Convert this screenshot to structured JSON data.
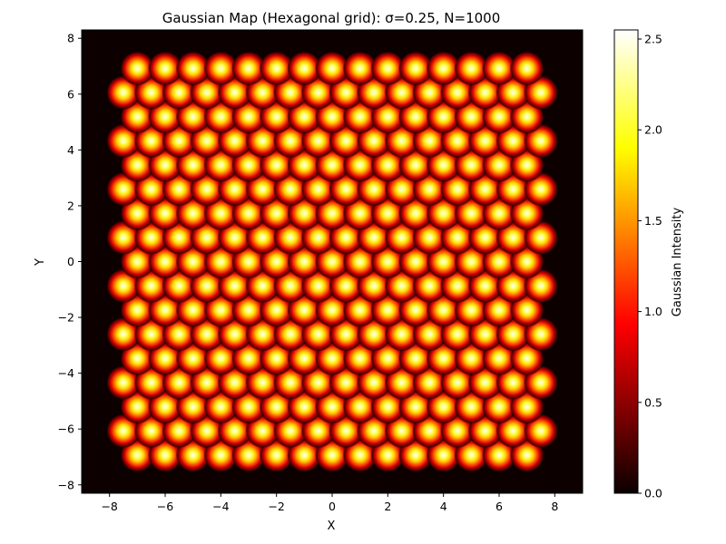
{
  "chart_data": {
    "type": "heatmap",
    "title": "Gaussian Map (Hexagonal grid): σ=0.25, N=1000",
    "xlabel": "X",
    "ylabel": "Y",
    "xlim": [
      -9,
      9
    ],
    "ylim": [
      -8.3,
      8.3
    ],
    "x_ticks": [
      "−8",
      "−6",
      "−4",
      "−2",
      "0",
      "2",
      "4",
      "6",
      "8"
    ],
    "x_tick_values": [
      -8,
      -6,
      -4,
      -2,
      0,
      2,
      4,
      6,
      8
    ],
    "y_ticks": [
      "−8",
      "−6",
      "−4",
      "−2",
      "0",
      "2",
      "4",
      "6",
      "8"
    ],
    "y_tick_values": [
      -8,
      -6,
      -4,
      -2,
      0,
      2,
      4,
      6,
      8
    ],
    "colormap": "hot",
    "background_color": "#0d0000",
    "grid": false,
    "sigma": 0.25,
    "N": 1000,
    "lattice": {
      "spacing": 1.0,
      "row_spacing": 0.866,
      "n_rows": 17,
      "row_y_start": -6.93,
      "even_row_x": [
        -7,
        -6,
        -5,
        -4,
        -3,
        -2,
        -1,
        0,
        1,
        2,
        3,
        4,
        5,
        6,
        7
      ],
      "odd_row_x": [
        -7.5,
        -6.5,
        -5.5,
        -4.5,
        -3.5,
        -2.5,
        -1.5,
        -0.5,
        0.5,
        1.5,
        2.5,
        3.5,
        4.5,
        5.5,
        6.5,
        7.5
      ],
      "peak_intensity": 2.55
    },
    "colorbar": {
      "label": "Gaussian Intensity",
      "min": 0.0,
      "max": 2.55,
      "ticks": [
        "0.0",
        "0.5",
        "1.0",
        "1.5",
        "2.0",
        "2.5"
      ],
      "tick_values": [
        0.0,
        0.5,
        1.0,
        1.5,
        2.0,
        2.5
      ]
    }
  }
}
